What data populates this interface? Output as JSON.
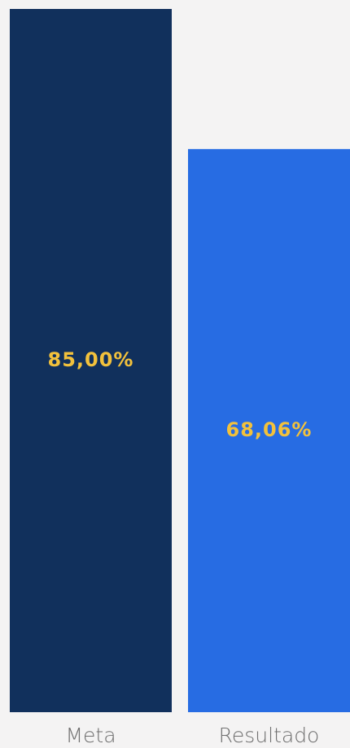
{
  "chart_data": {
    "type": "bar",
    "categories": [
      "Meta",
      "Resultado"
    ],
    "values": [
      85,
      68.06
    ],
    "value_labels": [
      "85,00%",
      "68,06%"
    ],
    "colors": [
      "#11305c",
      "#276ce3"
    ],
    "label_color": "#f2c13c",
    "ylim": [
      0,
      85
    ]
  }
}
